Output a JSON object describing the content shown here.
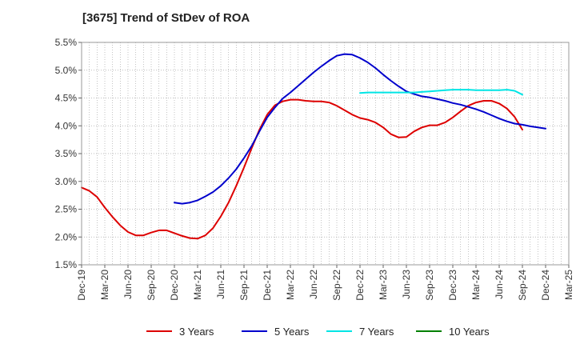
{
  "chart_data": {
    "type": "line",
    "title": "[3675]  Trend of StDev of ROA",
    "xlabel": "",
    "ylabel": "",
    "x_tick_labels": [
      "Dec-19",
      "Mar-20",
      "Jun-20",
      "Sep-20",
      "Dec-20",
      "Mar-21",
      "Jun-21",
      "Sep-21",
      "Dec-21",
      "Mar-22",
      "Jun-22",
      "Sep-22",
      "Dec-22",
      "Mar-23",
      "Jun-23",
      "Sep-23",
      "Dec-23",
      "Mar-24",
      "Jun-24",
      "Sep-24",
      "Dec-24",
      "Mar-25"
    ],
    "y_tick_labels": [
      "5.5%",
      "5.0%",
      "4.5%",
      "4.0%",
      "3.5%",
      "3.0%",
      "2.5%",
      "2.0%",
      "1.5%"
    ],
    "ylim": [
      1.5,
      5.5
    ],
    "y_unit": "%",
    "grid": true,
    "grid_style": "dotted",
    "legend_position": "bottom",
    "series": [
      {
        "name": "3 Years",
        "color": "#dd0000",
        "start_index": 0,
        "values": [
          2.89,
          2.83,
          2.72,
          2.53,
          2.36,
          2.21,
          2.09,
          2.03,
          2.03,
          2.08,
          2.12,
          2.12,
          2.07,
          2.02,
          1.98,
          1.97,
          2.03,
          2.16,
          2.37,
          2.62,
          2.92,
          3.25,
          3.6,
          3.93,
          4.2,
          4.37,
          4.44,
          4.47,
          4.47,
          4.45,
          4.44,
          4.44,
          4.42,
          4.36,
          4.28,
          4.2,
          4.14,
          4.11,
          4.06,
          3.97,
          3.85,
          3.79,
          3.8,
          3.9,
          3.97,
          4.01,
          4.01,
          4.06,
          4.15,
          4.26,
          4.36,
          4.42,
          4.45,
          4.45,
          4.4,
          4.31,
          4.16,
          3.93
        ]
      },
      {
        "name": "5 Years",
        "color": "#0000cc",
        "start_index": 12,
        "values": [
          2.62,
          2.6,
          2.62,
          2.66,
          2.73,
          2.81,
          2.92,
          3.06,
          3.22,
          3.42,
          3.64,
          3.9,
          4.15,
          4.33,
          4.49,
          4.6,
          4.72,
          4.84,
          4.96,
          5.07,
          5.17,
          5.26,
          5.29,
          5.28,
          5.22,
          5.14,
          5.04,
          4.92,
          4.81,
          4.71,
          4.62,
          4.57,
          4.53,
          4.51,
          4.48,
          4.45,
          4.41,
          4.38,
          4.34,
          4.3,
          4.25,
          4.19,
          4.13,
          4.08,
          4.04,
          4.02,
          3.99,
          3.97,
          3.95
        ]
      },
      {
        "name": "7 Years",
        "color": "#00e5e5",
        "start_index": 36,
        "values": [
          4.59,
          4.6,
          4.6,
          4.6,
          4.6,
          4.6,
          4.6,
          4.6,
          4.61,
          4.62,
          4.63,
          4.64,
          4.65,
          4.65,
          4.65,
          4.64,
          4.64,
          4.64,
          4.64,
          4.65,
          4.63,
          4.56
        ]
      },
      {
        "name": "10 Years",
        "color": "#008000",
        "start_index": 0,
        "values": []
      }
    ]
  }
}
